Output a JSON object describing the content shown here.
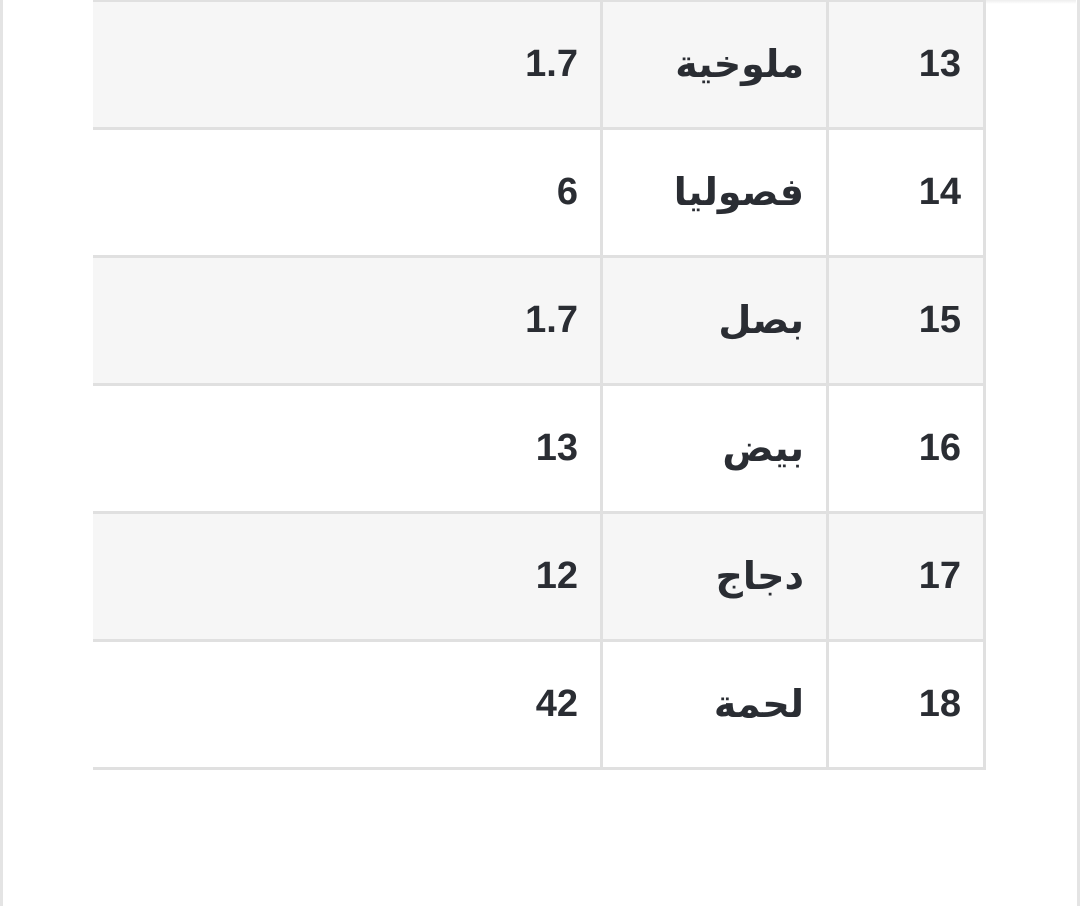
{
  "table": {
    "rows": [
      {
        "num": "13",
        "name": "ملوخية",
        "value": "1.7"
      },
      {
        "num": "14",
        "name": "فصوليا",
        "value": "6"
      },
      {
        "num": "15",
        "name": "بصل",
        "value": "1.7"
      },
      {
        "num": "16",
        "name": "بيض",
        "value": "13"
      },
      {
        "num": "17",
        "name": "دجاج",
        "value": "12"
      },
      {
        "num": "18",
        "name": "لحمة",
        "value": "42"
      }
    ]
  }
}
